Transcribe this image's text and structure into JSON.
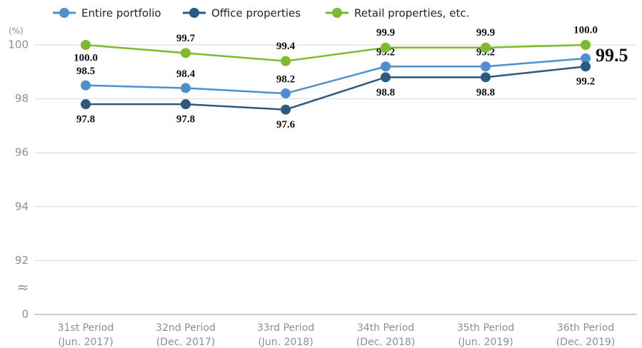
{
  "chart_data": {
    "type": "line",
    "y_unit": "(%)",
    "categories": [
      [
        "31st Period",
        "(Jun. 2017)"
      ],
      [
        "32nd Period",
        "(Dec. 2017)"
      ],
      [
        "33rd Period",
        "(Jun. 2018)"
      ],
      [
        "34th Period",
        "(Dec. 2018)"
      ],
      [
        "35th Period",
        "(Jun. 2019)"
      ],
      [
        "36th Period",
        "(Dec. 2019)"
      ]
    ],
    "series": [
      {
        "name": "Entire portfolio",
        "color": "#4d8fcf",
        "values": [
          98.5,
          98.4,
          98.2,
          99.2,
          99.2,
          99.5
        ]
      },
      {
        "name": "Office properties",
        "color": "#2b5a7e",
        "values": [
          97.8,
          97.8,
          97.6,
          98.8,
          98.8,
          99.2
        ]
      },
      {
        "name": "Retail properties, etc.",
        "color": "#7dba2d",
        "values": [
          100.0,
          99.7,
          99.4,
          99.9,
          99.9,
          100.0
        ],
        "value_labels": [
          "100.0",
          "99.7",
          "99.4",
          "99.9",
          "99.9",
          "100.0"
        ]
      }
    ],
    "ylim": [
      90,
      100
    ],
    "yticks": [
      92,
      94,
      96,
      98,
      100
    ],
    "y_origin_label": 0,
    "axis_break_symbol": "≈",
    "grid": true
  }
}
